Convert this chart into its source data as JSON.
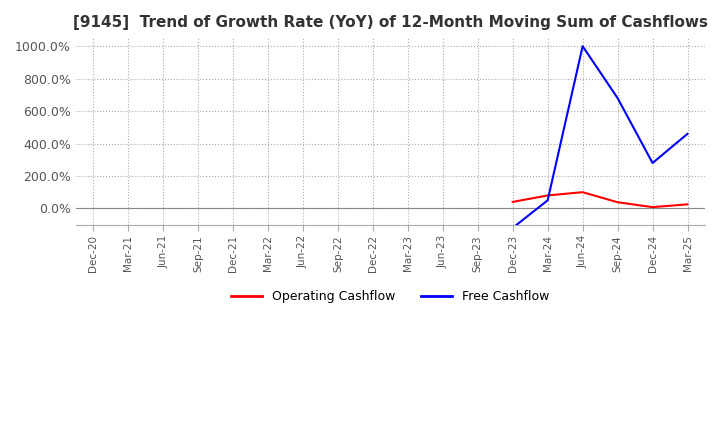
{
  "title": "[9145]  Trend of Growth Rate (YoY) of 12-Month Moving Sum of Cashflows",
  "x_labels": [
    "Dec-20",
    "Mar-21",
    "Jun-21",
    "Sep-21",
    "Dec-21",
    "Mar-22",
    "Jun-22",
    "Sep-22",
    "Dec-22",
    "Mar-23",
    "Jun-23",
    "Sep-23",
    "Dec-23",
    "Mar-24",
    "Jun-24",
    "Sep-24",
    "Dec-24",
    "Mar-25"
  ],
  "operating_cashflow": [
    null,
    null,
    null,
    null,
    null,
    null,
    null,
    null,
    null,
    null,
    null,
    null,
    0.4,
    0.8,
    1.0,
    0.38,
    0.08,
    0.25
  ],
  "free_cashflow": [
    null,
    null,
    null,
    null,
    null,
    null,
    null,
    null,
    null,
    null,
    null,
    null,
    -1.2,
    0.5,
    10.0,
    6.8,
    2.8,
    4.6
  ],
  "ylim": [
    -1.0,
    10.5
  ],
  "yticks": [
    0,
    2,
    4,
    6,
    8,
    10
  ],
  "ytick_labels": [
    "0.0%",
    "200.0%",
    "400.0%",
    "600.0%",
    "800.0%",
    "1000.0%"
  ],
  "operating_color": "#FF0000",
  "free_color": "#0000FF",
  "background_color": "#FFFFFF",
  "grid_color": "#AAAAAA",
  "title_color": "#333333",
  "legend_labels": [
    "Operating Cashflow",
    "Free Cashflow"
  ]
}
